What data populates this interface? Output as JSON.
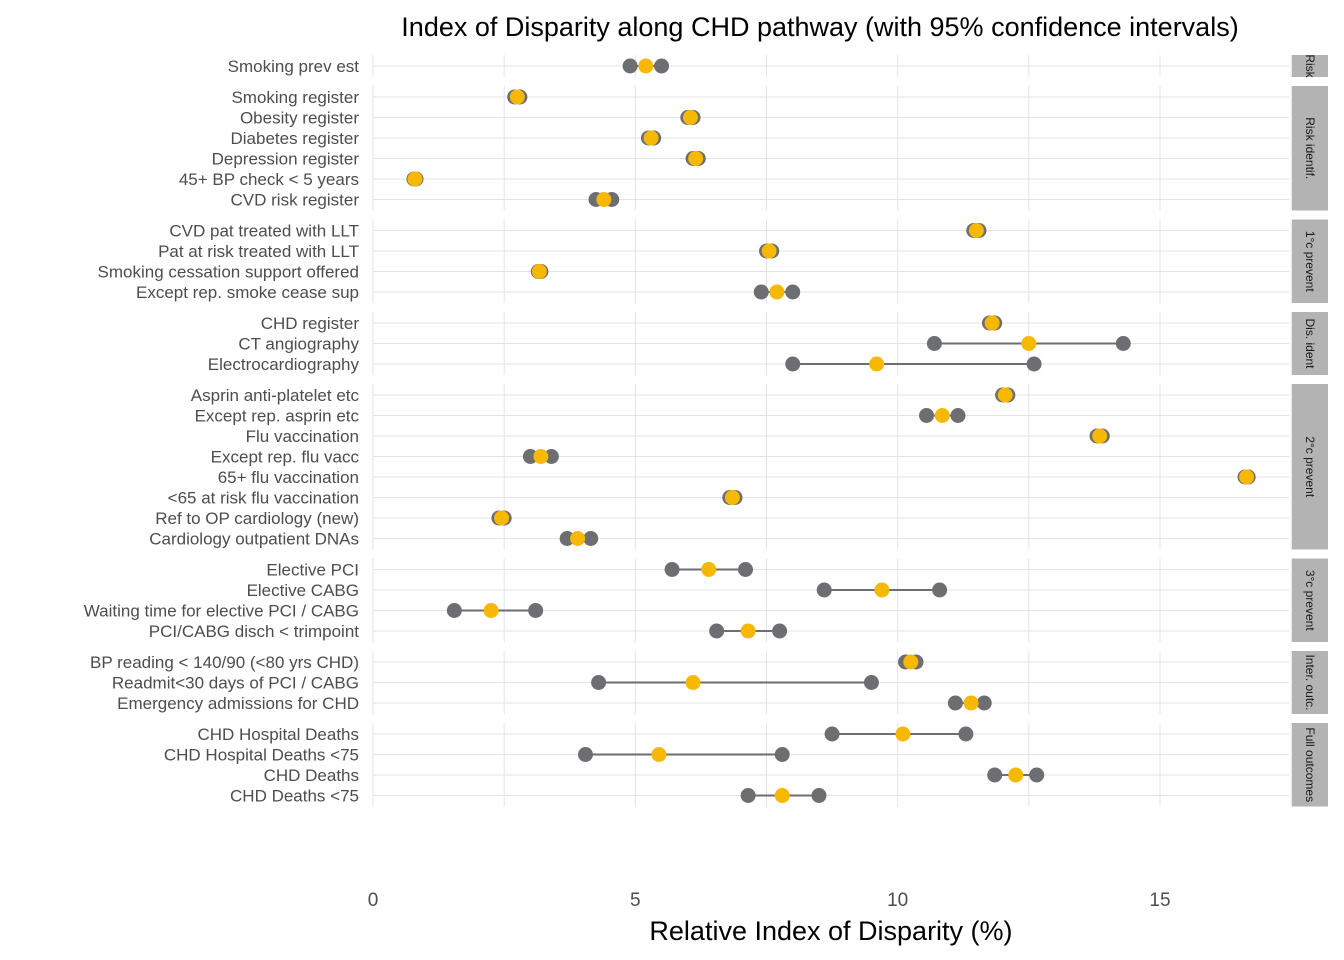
{
  "chart_data": {
    "type": "dot-interval",
    "title": "Index of Disparity along CHD pathway (with 95% confidence intervals)",
    "xlabel": "Relative Index of Disparity (%)",
    "ylabel": "",
    "xlim": [
      0,
      17.5
    ],
    "xticks": [
      0,
      5,
      10,
      15
    ],
    "grid": true,
    "colors": {
      "estimate": "#f6b800",
      "ci_bounds": "#6d6e71",
      "strip": "#b3b3b3"
    },
    "panels": [
      {
        "label": "Risk",
        "rows": [
          {
            "label": "Smoking prev est",
            "est": 5.2,
            "lo": 4.9,
            "hi": 5.5
          }
        ]
      },
      {
        "label": "Risk identif.",
        "rows": [
          {
            "label": "Smoking register",
            "est": 2.75,
            "lo": 2.7,
            "hi": 2.8
          },
          {
            "label": "Obesity register",
            "est": 6.05,
            "lo": 6.0,
            "hi": 6.1
          },
          {
            "label": "Diabetes register",
            "est": 5.3,
            "lo": 5.25,
            "hi": 5.35
          },
          {
            "label": "Depression register",
            "est": 6.15,
            "lo": 6.1,
            "hi": 6.2
          },
          {
            "label": "45+ BP check < 5 years",
            "est": 0.8,
            "lo": 0.78,
            "hi": 0.82
          },
          {
            "label": "CVD risk register",
            "est": 4.4,
            "lo": 4.25,
            "hi": 4.55
          }
        ]
      },
      {
        "label": "1°c prevent",
        "rows": [
          {
            "label": "CVD pat treated with LLT",
            "est": 11.5,
            "lo": 11.45,
            "hi": 11.55
          },
          {
            "label": "Pat at risk treated with LLT",
            "est": 7.55,
            "lo": 7.5,
            "hi": 7.6
          },
          {
            "label": "Smoking cessation support offered",
            "est": 3.17,
            "lo": 3.15,
            "hi": 3.2
          },
          {
            "label": "Except rep. smoke cease sup",
            "est": 7.7,
            "lo": 7.4,
            "hi": 8.0
          }
        ]
      },
      {
        "label": "Dis. ident",
        "rows": [
          {
            "label": "CHD register",
            "est": 11.8,
            "lo": 11.75,
            "hi": 11.85
          },
          {
            "label": "CT angiography",
            "est": 12.5,
            "lo": 10.7,
            "hi": 14.3
          },
          {
            "label": "Electrocardiography",
            "est": 9.6,
            "lo": 8.0,
            "hi": 12.6
          }
        ]
      },
      {
        "label": "2°c prevent",
        "rows": [
          {
            "label": "Asprin anti-platelet etc",
            "est": 12.05,
            "lo": 12.0,
            "hi": 12.1
          },
          {
            "label": "Except rep. asprin etc",
            "est": 10.85,
            "lo": 10.55,
            "hi": 11.15
          },
          {
            "label": "Flu vaccination",
            "est": 13.85,
            "lo": 13.8,
            "hi": 13.9
          },
          {
            "label": "Except rep. flu vacc",
            "est": 3.2,
            "lo": 3.0,
            "hi": 3.4
          },
          {
            "label": "65+ flu vaccination",
            "est": 16.65,
            "lo": 16.62,
            "hi": 16.68
          },
          {
            "label": "<65 at risk flu vaccination",
            "est": 6.85,
            "lo": 6.8,
            "hi": 6.9
          },
          {
            "label": "Ref to OP cardiology (new)",
            "est": 2.45,
            "lo": 2.4,
            "hi": 2.5
          },
          {
            "label": "Cardiology outpatient DNAs",
            "est": 3.9,
            "lo": 3.7,
            "hi": 4.15
          }
        ]
      },
      {
        "label": "3°c prevent",
        "rows": [
          {
            "label": "Elective PCI",
            "est": 6.4,
            "lo": 5.7,
            "hi": 7.1
          },
          {
            "label": "Elective CABG",
            "est": 9.7,
            "lo": 8.6,
            "hi": 10.8
          },
          {
            "label": "Waiting time for elective PCI / CABG",
            "est": 2.25,
            "lo": 1.55,
            "hi": 3.1
          },
          {
            "label": "PCI/CABG disch < trimpoint",
            "est": 7.15,
            "lo": 6.55,
            "hi": 7.75
          }
        ]
      },
      {
        "label": "Inter. outc.",
        "rows": [
          {
            "label": "BP reading < 140/90 (<80 yrs CHD)",
            "est": 10.25,
            "lo": 10.15,
            "hi": 10.35
          },
          {
            "label": "Readmit<30 days of PCI / CABG",
            "est": 6.1,
            "lo": 4.3,
            "hi": 9.5
          },
          {
            "label": "Emergency admissions for CHD",
            "est": 11.4,
            "lo": 11.1,
            "hi": 11.65
          }
        ]
      },
      {
        "label": "Full outcomes",
        "rows": [
          {
            "label": "CHD Hospital Deaths",
            "est": 10.1,
            "lo": 8.75,
            "hi": 11.3
          },
          {
            "label": "CHD Hospital Deaths <75",
            "est": 5.45,
            "lo": 4.05,
            "hi": 7.8
          },
          {
            "label": "CHD Deaths",
            "est": 12.25,
            "lo": 11.85,
            "hi": 12.65
          },
          {
            "label": "CHD Deaths <75",
            "est": 7.8,
            "lo": 7.15,
            "hi": 8.5
          }
        ]
      }
    ]
  }
}
